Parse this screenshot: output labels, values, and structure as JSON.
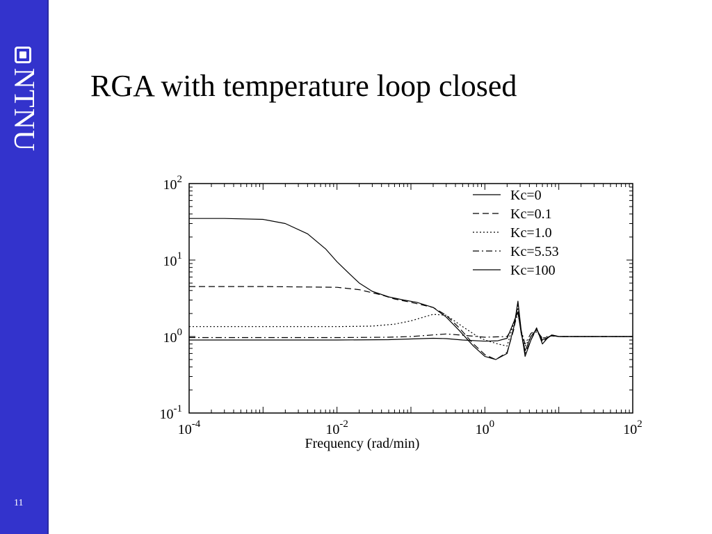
{
  "slide": {
    "title": "RGA with temperature loop closed",
    "page_number": "11"
  },
  "sidebar": {
    "logo_text": "NTNU",
    "logo_icon": "ntnu-logo-icon",
    "background_color": "#3333cc"
  },
  "chart_data": {
    "type": "line",
    "title": "",
    "xlabel": "Frequency (rad/min)",
    "ylabel": "",
    "xscale": "log",
    "yscale": "log",
    "xlim": [
      0.0001,
      100
    ],
    "ylim": [
      0.1,
      100
    ],
    "x_ticks": [
      {
        "base": "10",
        "exp": "-4"
      },
      {
        "base": "10",
        "exp": "-2"
      },
      {
        "base": "10",
        "exp": "0"
      },
      {
        "base": "10",
        "exp": "2"
      }
    ],
    "y_ticks": [
      {
        "base": "10",
        "exp": "-1"
      },
      {
        "base": "10",
        "exp": "0"
      },
      {
        "base": "10",
        "exp": "1"
      },
      {
        "base": "10",
        "exp": "2"
      }
    ],
    "grid": false,
    "legend_position": "top-right",
    "series": [
      {
        "name": "Kc=0",
        "dash": "solid",
        "x": [
          0.0001,
          0.0003,
          0.001,
          0.002,
          0.004,
          0.007,
          0.01,
          0.015,
          0.02,
          0.03,
          0.05,
          0.08,
          0.12,
          0.2,
          0.3,
          0.45,
          0.7,
          1.0,
          1.4,
          2.0,
          2.5,
          2.8,
          3.1,
          3.5,
          4.2,
          5.0,
          6.0,
          7.0,
          8.0,
          10.0,
          100.0
        ],
        "y": [
          35,
          35,
          34,
          30,
          22,
          14,
          9.5,
          6.5,
          5.0,
          3.9,
          3.3,
          3.0,
          2.8,
          2.4,
          1.8,
          1.2,
          0.75,
          0.55,
          0.5,
          0.6,
          1.4,
          2.9,
          1.2,
          0.55,
          0.9,
          1.3,
          0.8,
          0.95,
          1.05,
          1.0,
          1.0
        ]
      },
      {
        "name": "Kc=0.1",
        "dash": "dashed",
        "x": [
          0.0001,
          0.001,
          0.01,
          0.02,
          0.04,
          0.06,
          0.1,
          0.2,
          0.3,
          0.45,
          0.7,
          1.0,
          1.4,
          2.0,
          2.5,
          2.8,
          3.1,
          3.5,
          4.2,
          5.0,
          6.0,
          7.0,
          8.0,
          10.0,
          100.0
        ],
        "y": [
          4.5,
          4.5,
          4.4,
          4.1,
          3.5,
          3.1,
          2.8,
          2.4,
          1.9,
          1.3,
          0.8,
          0.58,
          0.5,
          0.62,
          1.3,
          2.7,
          1.1,
          0.6,
          0.9,
          1.25,
          0.85,
          0.95,
          1.05,
          1.0,
          1.0
        ]
      },
      {
        "name": "Kc=1.0",
        "dash": "dotted",
        "x": [
          0.0001,
          0.001,
          0.01,
          0.03,
          0.06,
          0.1,
          0.15,
          0.2,
          0.3,
          0.5,
          0.8,
          1.0,
          1.5,
          2.0,
          2.5,
          2.8,
          3.1,
          3.5,
          4.2,
          5.0,
          6.0,
          7.0,
          8.0,
          10.0,
          100.0
        ],
        "y": [
          1.35,
          1.35,
          1.35,
          1.37,
          1.45,
          1.6,
          1.8,
          1.95,
          1.9,
          1.35,
          1.0,
          0.9,
          0.8,
          0.75,
          1.6,
          2.4,
          1.2,
          0.75,
          1.0,
          1.15,
          0.95,
          1.0,
          1.02,
          1.0,
          1.0
        ]
      },
      {
        "name": "Kc=5.53",
        "dash": "dashdot",
        "x": [
          0.0001,
          0.001,
          0.01,
          0.05,
          0.1,
          0.2,
          0.3,
          0.5,
          1.0,
          2.0,
          2.5,
          2.8,
          3.1,
          3.5,
          4.2,
          5.0,
          6.0,
          8.0,
          10.0,
          100.0
        ],
        "y": [
          0.97,
          0.97,
          0.97,
          0.98,
          1.0,
          1.05,
          1.08,
          1.04,
          0.98,
          1.0,
          1.4,
          2.0,
          1.2,
          0.8,
          1.1,
          1.2,
          0.95,
          1.02,
          1.0,
          1.0
        ]
      },
      {
        "name": "Kc=100",
        "dash": "solid",
        "x": [
          0.0001,
          0.001,
          0.01,
          0.05,
          0.1,
          0.2,
          0.3,
          0.5,
          1.0,
          1.5,
          2.0,
          2.5,
          2.8,
          3.1,
          3.5,
          4.2,
          5.0,
          6.0,
          8.0,
          10.0,
          100.0
        ],
        "y": [
          0.9,
          0.9,
          0.9,
          0.91,
          0.93,
          0.95,
          0.94,
          0.9,
          0.87,
          0.88,
          0.95,
          1.6,
          2.1,
          1.1,
          0.65,
          1.0,
          1.25,
          0.9,
          1.03,
          1.0,
          1.0
        ]
      }
    ]
  }
}
